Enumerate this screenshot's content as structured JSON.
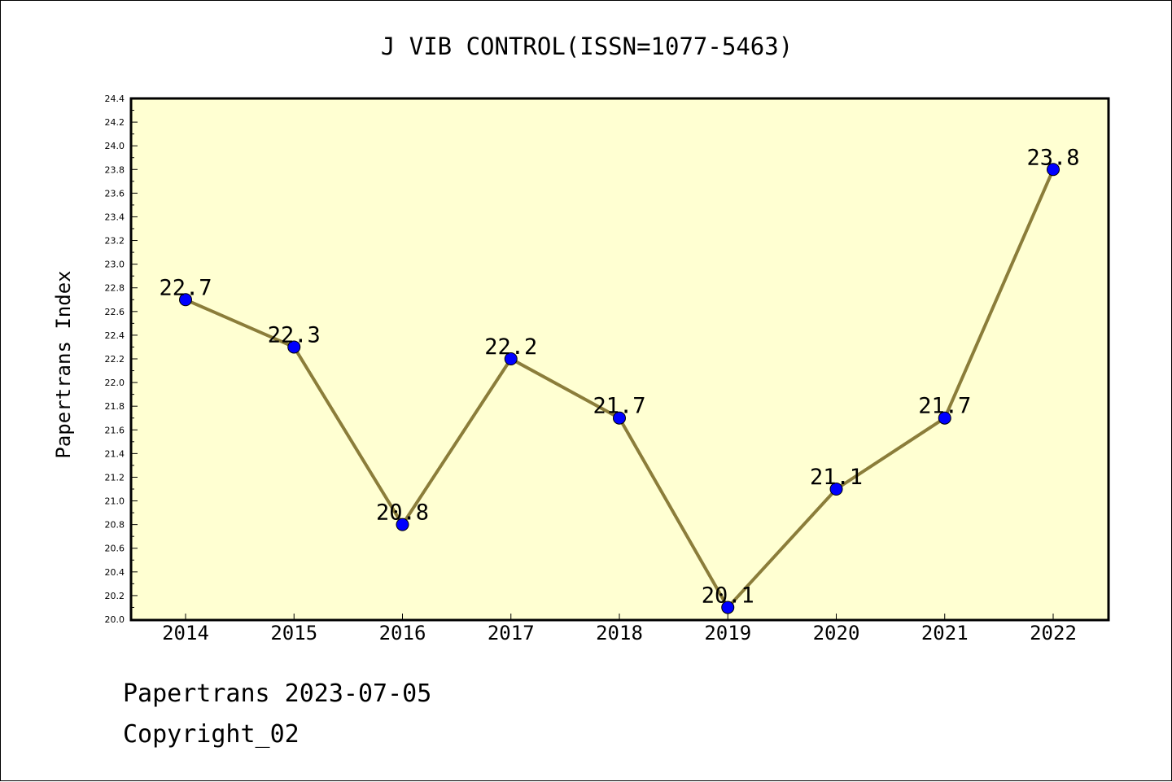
{
  "chart_data": {
    "type": "line",
    "title": "J VIB CONTROL(ISSN=1077-5463)",
    "xlabel": "",
    "ylabel": "Papertrans Index",
    "categories": [
      "2014",
      "2015",
      "2016",
      "2017",
      "2018",
      "2019",
      "2020",
      "2021",
      "2022"
    ],
    "values": [
      22.7,
      22.3,
      20.8,
      22.2,
      21.7,
      20.1,
      21.1,
      21.7,
      23.8
    ],
    "data_labels": [
      "22.7",
      "22.3",
      "20.8",
      "22.2",
      "21.7",
      "20.1",
      "21.1",
      "21.7",
      "23.8"
    ],
    "ylim": [
      20.0,
      24.4
    ],
    "y_tick_step": 0.2,
    "grid": false,
    "legend": "none",
    "colors": {
      "plot_background": "#ffffd2",
      "line": "#8b7d3a",
      "marker": "#0000ff",
      "axis": "#000000"
    }
  },
  "footer": {
    "date_line": "Papertrans 2023-07-05",
    "copyright": "Copyright_02"
  }
}
